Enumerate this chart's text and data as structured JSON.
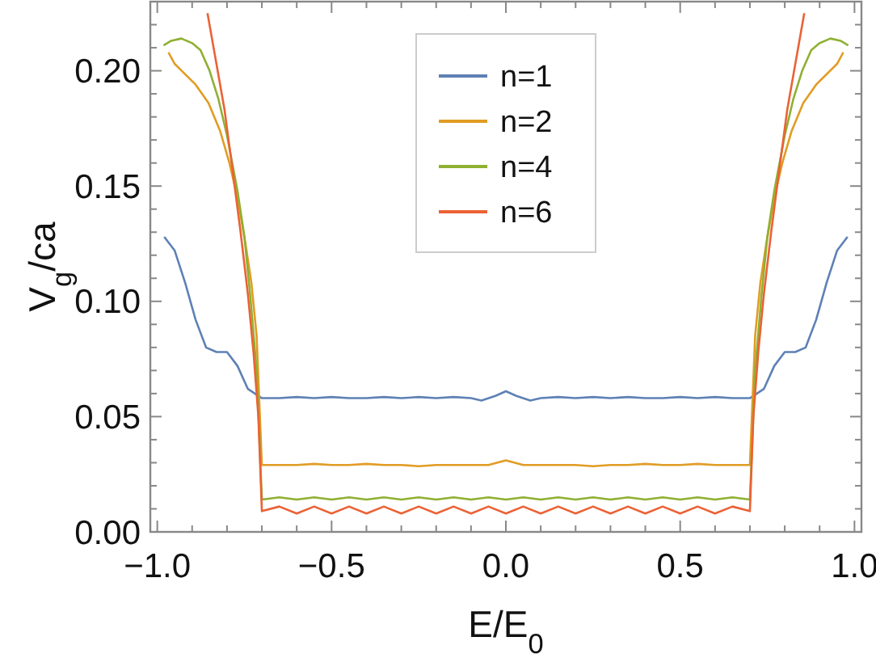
{
  "chart_data": {
    "type": "line",
    "xlabel": "E/E$_{0}$",
    "ylabel": "V$_{g}$/ca",
    "xlim": [
      -1.02,
      1.02
    ],
    "ylim": [
      0,
      0.23
    ],
    "xticks": [
      {
        "value": -1,
        "label": "−1.0"
      },
      {
        "value": -0.9,
        "label": null
      },
      {
        "value": -0.8,
        "label": null
      },
      {
        "value": -0.7,
        "label": null
      },
      {
        "value": -0.6,
        "label": null
      },
      {
        "value": -0.5,
        "label": "−0.5"
      },
      {
        "value": -0.4,
        "label": null
      },
      {
        "value": -0.3,
        "label": null
      },
      {
        "value": -0.2,
        "label": null
      },
      {
        "value": -0.1,
        "label": null
      },
      {
        "value": 0,
        "label": "0.0"
      },
      {
        "value": 0.1,
        "label": null
      },
      {
        "value": 0.2,
        "label": null
      },
      {
        "value": 0.3,
        "label": null
      },
      {
        "value": 0.4,
        "label": null
      },
      {
        "value": 0.5,
        "label": "0.5"
      },
      {
        "value": 0.6,
        "label": null
      },
      {
        "value": 0.7,
        "label": null
      },
      {
        "value": 0.8,
        "label": null
      },
      {
        "value": 0.9,
        "label": null
      },
      {
        "value": 1,
        "label": "1.0"
      }
    ],
    "yticks": [
      {
        "value": 0,
        "label": "0.00"
      },
      {
        "value": 0.01,
        "label": null
      },
      {
        "value": 0.02,
        "label": null
      },
      {
        "value": 0.03,
        "label": null
      },
      {
        "value": 0.04,
        "label": null
      },
      {
        "value": 0.05,
        "label": "0.05"
      },
      {
        "value": 0.06,
        "label": null
      },
      {
        "value": 0.07,
        "label": null
      },
      {
        "value": 0.08,
        "label": null
      },
      {
        "value": 0.09,
        "label": null
      },
      {
        "value": 0.1,
        "label": "0.10"
      },
      {
        "value": 0.11,
        "label": null
      },
      {
        "value": 0.12,
        "label": null
      },
      {
        "value": 0.13,
        "label": null
      },
      {
        "value": 0.14,
        "label": null
      },
      {
        "value": 0.15,
        "label": "0.15"
      },
      {
        "value": 0.16,
        "label": null
      },
      {
        "value": 0.17,
        "label": null
      },
      {
        "value": 0.18,
        "label": null
      },
      {
        "value": 0.19,
        "label": null
      },
      {
        "value": 0.2,
        "label": "0.20"
      },
      {
        "value": 0.21,
        "label": null
      },
      {
        "value": 0.22,
        "label": null
      }
    ],
    "grid": false,
    "legend": "top",
    "line_style": "solid",
    "marker": "none",
    "series": [
      {
        "name": "n=1",
        "color": "#5e81b5",
        "x": [
          -0.98,
          -0.95,
          -0.92,
          -0.89,
          -0.86,
          -0.83,
          -0.8,
          -0.77,
          -0.74,
          -0.7,
          -0.65,
          -0.6,
          -0.55,
          -0.5,
          -0.45,
          -0.4,
          -0.35,
          -0.3,
          -0.25,
          -0.2,
          -0.15,
          -0.1,
          -0.07,
          -0.03,
          0,
          0.03,
          0.07,
          0.1,
          0.15,
          0.2,
          0.25,
          0.3,
          0.35,
          0.4,
          0.45,
          0.5,
          0.55,
          0.6,
          0.65,
          0.7,
          0.74,
          0.77,
          0.8,
          0.83,
          0.86,
          0.89,
          0.92,
          0.95,
          0.98
        ],
        "values": [
          0.128,
          0.122,
          0.108,
          0.092,
          0.08,
          0.078,
          0.078,
          0.072,
          0.062,
          0.058,
          0.058,
          0.0585,
          0.058,
          0.0585,
          0.058,
          0.058,
          0.0585,
          0.058,
          0.0585,
          0.058,
          0.0585,
          0.058,
          0.057,
          0.059,
          0.061,
          0.059,
          0.057,
          0.058,
          0.0585,
          0.058,
          0.0585,
          0.058,
          0.0585,
          0.058,
          0.058,
          0.0585,
          0.058,
          0.0585,
          0.058,
          0.058,
          0.062,
          0.072,
          0.078,
          0.078,
          0.08,
          0.092,
          0.108,
          0.122,
          0.128
        ]
      },
      {
        "name": "n=2",
        "color": "#e19c24",
        "x": [
          -0.968,
          -0.95,
          -0.93,
          -0.89,
          -0.853,
          -0.82,
          -0.793,
          -0.77,
          -0.747,
          -0.73,
          -0.715,
          -0.7,
          -0.65,
          -0.6,
          -0.55,
          -0.5,
          -0.45,
          -0.4,
          -0.35,
          -0.3,
          -0.25,
          -0.2,
          -0.15,
          -0.1,
          -0.05,
          0,
          0.05,
          0.1,
          0.15,
          0.2,
          0.25,
          0.3,
          0.35,
          0.4,
          0.45,
          0.5,
          0.55,
          0.6,
          0.65,
          0.7,
          0.715,
          0.73,
          0.747,
          0.77,
          0.793,
          0.82,
          0.853,
          0.89,
          0.93,
          0.95,
          0.968
        ],
        "values": [
          0.208,
          0.203,
          0.2,
          0.194,
          0.186,
          0.174,
          0.16,
          0.145,
          0.125,
          0.108,
          0.085,
          0.029,
          0.029,
          0.029,
          0.0295,
          0.029,
          0.029,
          0.0295,
          0.029,
          0.029,
          0.0285,
          0.029,
          0.029,
          0.029,
          0.029,
          0.031,
          0.029,
          0.029,
          0.029,
          0.029,
          0.0285,
          0.029,
          0.029,
          0.0295,
          0.029,
          0.029,
          0.0295,
          0.029,
          0.029,
          0.029,
          0.085,
          0.108,
          0.125,
          0.145,
          0.16,
          0.174,
          0.186,
          0.194,
          0.2,
          0.203,
          0.208
        ]
      },
      {
        "name": "n=4",
        "color": "#8fb032",
        "x": [
          -0.982,
          -0.96,
          -0.931,
          -0.9,
          -0.876,
          -0.85,
          -0.825,
          -0.8,
          -0.77,
          -0.75,
          -0.733,
          -0.715,
          -0.7,
          -0.65,
          -0.6,
          -0.55,
          -0.5,
          -0.45,
          -0.4,
          -0.35,
          -0.3,
          -0.25,
          -0.2,
          -0.15,
          -0.1,
          -0.05,
          0,
          0.05,
          0.1,
          0.15,
          0.2,
          0.25,
          0.3,
          0.35,
          0.4,
          0.45,
          0.5,
          0.55,
          0.6,
          0.65,
          0.7,
          0.715,
          0.733,
          0.75,
          0.77,
          0.8,
          0.825,
          0.85,
          0.876,
          0.9,
          0.931,
          0.96,
          0.982
        ],
        "values": [
          0.211,
          0.213,
          0.214,
          0.212,
          0.209,
          0.2,
          0.188,
          0.172,
          0.148,
          0.128,
          0.102,
          0.07,
          0.014,
          0.015,
          0.014,
          0.015,
          0.014,
          0.015,
          0.014,
          0.015,
          0.014,
          0.015,
          0.014,
          0.015,
          0.014,
          0.015,
          0.014,
          0.015,
          0.014,
          0.015,
          0.014,
          0.015,
          0.014,
          0.015,
          0.014,
          0.015,
          0.014,
          0.015,
          0.014,
          0.015,
          0.014,
          0.07,
          0.102,
          0.128,
          0.148,
          0.172,
          0.188,
          0.2,
          0.209,
          0.212,
          0.214,
          0.213,
          0.211
        ]
      },
      {
        "name": "n=6",
        "color": "#eb6235",
        "x": [
          -0.856,
          -0.835,
          -0.807,
          -0.785,
          -0.761,
          -0.74,
          -0.724,
          -0.71,
          -0.7,
          -0.65,
          -0.6,
          -0.55,
          -0.5,
          -0.45,
          -0.4,
          -0.35,
          -0.3,
          -0.25,
          -0.2,
          -0.15,
          -0.1,
          -0.05,
          0,
          0.05,
          0.1,
          0.15,
          0.2,
          0.25,
          0.3,
          0.35,
          0.4,
          0.45,
          0.5,
          0.55,
          0.6,
          0.65,
          0.7,
          0.71,
          0.724,
          0.74,
          0.761,
          0.785,
          0.807,
          0.835,
          0.856
        ],
        "values": [
          0.225,
          0.207,
          0.183,
          0.158,
          0.13,
          0.103,
          0.078,
          0.05,
          0.009,
          0.011,
          0.008,
          0.011,
          0.008,
          0.011,
          0.008,
          0.011,
          0.008,
          0.011,
          0.008,
          0.011,
          0.008,
          0.011,
          0.008,
          0.011,
          0.008,
          0.011,
          0.008,
          0.011,
          0.008,
          0.011,
          0.008,
          0.011,
          0.008,
          0.011,
          0.008,
          0.011,
          0.009,
          0.05,
          0.078,
          0.103,
          0.13,
          0.158,
          0.183,
          0.207,
          0.225
        ]
      }
    ]
  }
}
